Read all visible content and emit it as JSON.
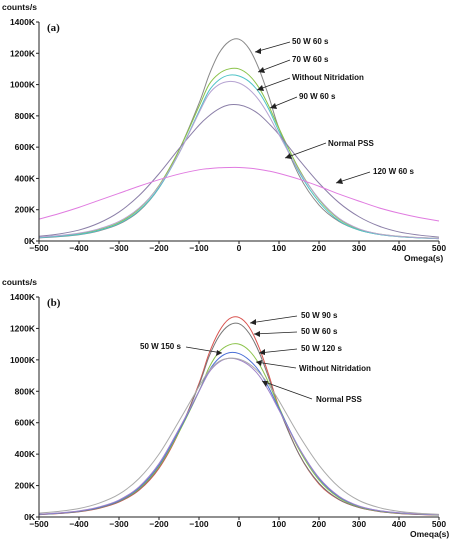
{
  "chart_data": [
    {
      "type": "line",
      "panel_label": "(a)",
      "ylabel": "counts/s",
      "xlabel": "Omega(s)",
      "xlim": [
        -500,
        500
      ],
      "ylim": [
        0,
        1400000
      ],
      "xticks": [
        -500,
        -400,
        -300,
        -200,
        -100,
        0,
        100,
        200,
        300,
        400,
        500
      ],
      "xtick_labels": [
        "-500",
        "-400",
        "-300",
        "-200",
        "-100",
        "0",
        "100",
        "200",
        "300",
        "400",
        "500"
      ],
      "yticks": [
        0,
        200000,
        400000,
        600000,
        800000,
        1000000,
        1200000,
        1400000
      ],
      "ytick_labels": [
        "0K",
        "200K",
        "400K",
        "600K",
        "800K",
        "1000K",
        "1200K",
        "1400K"
      ],
      "x": [
        -500,
        -450,
        -400,
        -350,
        -300,
        -250,
        -200,
        -150,
        -100,
        -75,
        -50,
        -25,
        0,
        25,
        50,
        75,
        100,
        150,
        200,
        250,
        300,
        350,
        400,
        450,
        500
      ],
      "series": [
        {
          "name": "50 W 60 s",
          "color": "#888888",
          "values": [
            20000,
            28000,
            40000,
            65000,
            108000,
            190000,
            340000,
            580000,
            880000,
            1060000,
            1200000,
            1275000,
            1290000,
            1230000,
            1100000,
            920000,
            720000,
            420000,
            230000,
            125000,
            70000,
            42000,
            28000,
            20000,
            15000
          ]
        },
        {
          "name": "70 W 60 s",
          "color": "#8bc34a",
          "values": [
            25000,
            33000,
            46000,
            72000,
            118000,
            205000,
            355000,
            580000,
            860000,
            1000000,
            1070000,
            1100000,
            1100000,
            1060000,
            980000,
            860000,
            720000,
            460000,
            265000,
            140000,
            75000,
            45000,
            30000,
            22000,
            17000
          ]
        },
        {
          "name": "Without Nitridation",
          "color": "#4fc3c7",
          "values": [
            22000,
            30000,
            42000,
            68000,
            112000,
            195000,
            340000,
            560000,
            830000,
            960000,
            1030000,
            1060000,
            1055000,
            1020000,
            950000,
            840000,
            700000,
            440000,
            250000,
            130000,
            70000,
            42000,
            28000,
            20000,
            15000
          ]
        },
        {
          "name": "90 W 60 s",
          "color": "#8b7fa8",
          "values": [
            30000,
            45000,
            70000,
            115000,
            185000,
            290000,
            430000,
            590000,
            740000,
            800000,
            845000,
            870000,
            870000,
            850000,
            810000,
            750000,
            680000,
            520000,
            370000,
            245000,
            155000,
            95000,
            58000,
            38000,
            25000
          ]
        },
        {
          "name": "Normal PSS",
          "color": "#b5a3d1",
          "values": [
            25000,
            35000,
            50000,
            78000,
            125000,
            210000,
            350000,
            560000,
            820000,
            940000,
            1000000,
            1020000,
            1010000,
            970000,
            900000,
            800000,
            680000,
            450000,
            270000,
            145000,
            78000,
            45000,
            30000,
            22000,
            16000
          ]
        },
        {
          "name": "120 W 60 s",
          "color": "#e07be0",
          "values": [
            140000,
            175000,
            215000,
            260000,
            305000,
            350000,
            392000,
            428000,
            455000,
            463000,
            468000,
            470000,
            470000,
            466000,
            458000,
            447000,
            432000,
            395000,
            350000,
            300000,
            255000,
            212000,
            178000,
            150000,
            128000
          ]
        }
      ],
      "annotations": [
        {
          "text": "50 W   60 s",
          "series": "50 W 60 s"
        },
        {
          "text": "70 W   60 s",
          "series": "70 W 60 s"
        },
        {
          "text": "Without Nitridation",
          "series": "Without Nitridation"
        },
        {
          "text": "90 W   60 s",
          "series": "90 W 60 s"
        },
        {
          "text": "Normal PSS",
          "series": "Normal PSS"
        },
        {
          "text": "120 W   60 s",
          "series": "120 W 60 s"
        }
      ],
      "grid": false
    },
    {
      "type": "line",
      "panel_label": "(b)",
      "ylabel": "counts/s",
      "xlabel": "Omeqa(s)",
      "xlim": [
        -500,
        500
      ],
      "ylim": [
        0,
        1400000
      ],
      "xticks": [
        -500,
        -400,
        -300,
        -200,
        -100,
        0,
        100,
        200,
        300,
        400,
        500
      ],
      "xtick_labels": [
        "-500",
        "-400",
        "-300",
        "-200",
        "-100",
        "0",
        "100",
        "200",
        "300",
        "400",
        "500"
      ],
      "yticks": [
        0,
        200000,
        400000,
        600000,
        800000,
        1000000,
        1200000,
        1400000
      ],
      "ytick_labels": [
        "0K",
        "200K",
        "400K",
        "600K",
        "800K",
        "1000K",
        "1200K",
        "1400K"
      ],
      "x": [
        -500,
        -450,
        -400,
        -350,
        -300,
        -250,
        -200,
        -150,
        -100,
        -75,
        -50,
        -25,
        0,
        25,
        50,
        75,
        100,
        150,
        200,
        250,
        300,
        350,
        400,
        450,
        500
      ],
      "series": [
        {
          "name": "50 W 90 s",
          "color": "#d9534f",
          "values": [
            15000,
            22000,
            33000,
            55000,
            95000,
            170000,
            310000,
            540000,
            850000,
            1040000,
            1180000,
            1260000,
            1270000,
            1210000,
            1080000,
            900000,
            700000,
            400000,
            210000,
            110000,
            60000,
            35000,
            22000,
            16000,
            12000
          ]
        },
        {
          "name": "50 W 60 s",
          "color": "#777777",
          "values": [
            16000,
            23000,
            34000,
            57000,
            98000,
            175000,
            318000,
            545000,
            840000,
            1020000,
            1150000,
            1220000,
            1230000,
            1170000,
            1050000,
            880000,
            690000,
            400000,
            215000,
            112000,
            61000,
            36000,
            23000,
            17000,
            13000
          ]
        },
        {
          "name": "50 W 120 s",
          "color": "#8bc34a",
          "values": [
            17000,
            25000,
            37000,
            60000,
            102000,
            180000,
            322000,
            540000,
            800000,
            950000,
            1050000,
            1095000,
            1100000,
            1060000,
            975000,
            850000,
            700000,
            430000,
            235000,
            122000,
            65000,
            38000,
            25000,
            18000,
            14000
          ]
        },
        {
          "name": "Without Nitridation",
          "color": "#4a6fd6",
          "values": [
            17000,
            25000,
            37000,
            61000,
            104000,
            185000,
            330000,
            550000,
            800000,
            930000,
            1010000,
            1045000,
            1040000,
            1000000,
            930000,
            820000,
            690000,
            440000,
            245000,
            128000,
            68000,
            40000,
            26000,
            19000,
            14000
          ]
        },
        {
          "name": "Normal PSS",
          "color": "#a084c9",
          "values": [
            18000,
            26000,
            39000,
            64000,
            108000,
            192000,
            340000,
            560000,
            800000,
            920000,
            985000,
            1010000,
            1000000,
            965000,
            900000,
            800000,
            680000,
            440000,
            250000,
            132000,
            70000,
            41000,
            27000,
            19000,
            15000
          ]
        },
        {
          "name": "50 W 150 s",
          "color": "#aaaaaa",
          "values": [
            25000,
            36000,
            54000,
            88000,
            145000,
            245000,
            400000,
            610000,
            830000,
            930000,
            990000,
            1010000,
            1005000,
            975000,
            920000,
            840000,
            740000,
            520000,
            330000,
            190000,
            105000,
            60000,
            36000,
            24000,
            17000
          ]
        }
      ],
      "annotations": [
        {
          "text": "50 W   90 s",
          "series": "50 W 90 s"
        },
        {
          "text": "50 W   60 s",
          "series": "50 W 60 s"
        },
        {
          "text": "50 W   120 s",
          "series": "50 W 120 s"
        },
        {
          "text": "50 W   150 s",
          "series": "50 W 150 s"
        },
        {
          "text": "Without Nitridation",
          "series": "Without Nitridation"
        },
        {
          "text": "Normal PSS",
          "series": "Normal PSS"
        }
      ],
      "grid": false
    }
  ]
}
